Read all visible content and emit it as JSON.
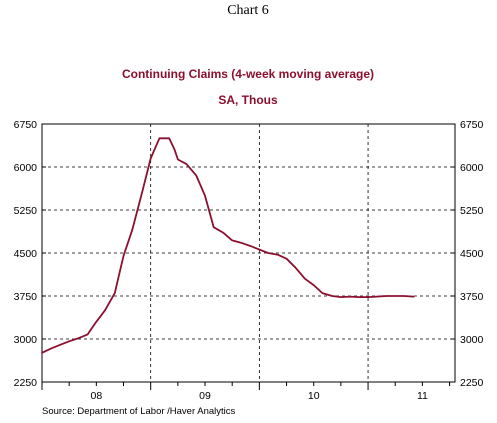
{
  "colors": {
    "series": "#8b0f2e",
    "title": "#8b0f2e",
    "axis": "#000000",
    "grid": "#000000"
  },
  "chart_label": "Chart 6",
  "source": "Source:   Department of Labor /Haver Analytics",
  "chart_data": {
    "type": "line",
    "title": "Continuing Claims (4-week moving average)",
    "subtitle": "SA, Thous",
    "xlabel": "",
    "ylabel": "",
    "x_categories": [
      "08",
      "09",
      "10",
      "11"
    ],
    "x_range": [
      2008.0,
      2011.8
    ],
    "ylim": [
      2250,
      6750
    ],
    "y_ticks": [
      2250,
      3000,
      3750,
      4500,
      5250,
      6000,
      6750
    ],
    "y_tick_labels": [
      "2250",
      "3000",
      "3750",
      "4500",
      "5250",
      "6000",
      "6750"
    ],
    "gridlines": "dashed, both axes",
    "y_axis_labels_both_sides": true,
    "series": [
      {
        "x": [
          2008.0,
          2008.08,
          2008.17,
          2008.25,
          2008.33,
          2008.42,
          2008.5,
          2008.58,
          2008.67,
          2008.75,
          2008.83,
          2008.92,
          2009.0,
          2009.08,
          2009.17,
          2009.22,
          2009.25,
          2009.33,
          2009.42,
          2009.5,
          2009.58,
          2009.67,
          2009.75,
          2009.83,
          2009.92,
          2010.0,
          2010.08,
          2010.17,
          2010.25,
          2010.33,
          2010.42,
          2010.5,
          2010.58,
          2010.67,
          2010.75,
          2010.83,
          2010.92,
          2011.0,
          2011.08,
          2011.17,
          2011.25,
          2011.33,
          2011.42
        ],
        "values": [
          2760,
          2830,
          2900,
          2960,
          3010,
          3080,
          3300,
          3500,
          3800,
          4450,
          4900,
          5550,
          6150,
          6500,
          6500,
          6300,
          6130,
          6050,
          5850,
          5500,
          4950,
          4850,
          4720,
          4680,
          4620,
          4560,
          4500,
          4470,
          4400,
          4250,
          4050,
          3940,
          3800,
          3750,
          3730,
          3740,
          3730,
          3730,
          3740,
          3750,
          3750,
          3750,
          3740
        ]
      }
    ]
  }
}
